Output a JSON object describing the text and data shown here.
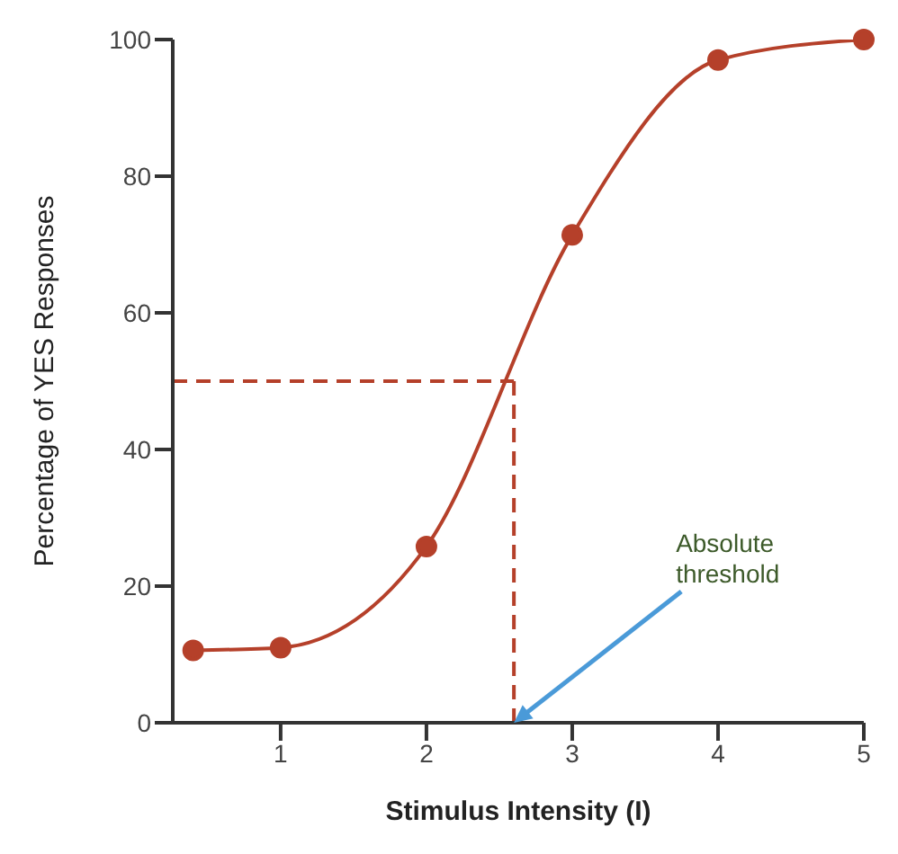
{
  "chart_data": {
    "type": "line",
    "xlabel": "Stimulus Intensity (I)",
    "ylabel": "Percentage of YES Responses",
    "x": [
      0.4,
      1,
      2,
      3,
      4,
      5
    ],
    "series": [
      {
        "color": "#b5402a",
        "values": [
          10.6,
          11,
          25.8,
          71.4,
          97,
          100
        ]
      }
    ],
    "xlim": [
      0.26,
      5
    ],
    "xticks": [
      1,
      2,
      3,
      4,
      5
    ],
    "ylim": [
      0,
      100
    ],
    "yticks": [
      0,
      20,
      40,
      60,
      80,
      100
    ],
    "marker": "circle",
    "line_style": "solid",
    "ref_lines": [
      {
        "axis": "y",
        "value": 50,
        "color": "#b5402a",
        "line_style": "dashed"
      },
      {
        "axis": "x",
        "value": 2.6,
        "color": "#b5402a",
        "line_style": "dashed"
      }
    ],
    "annotations": [
      {
        "text": "Absolute threshold",
        "x": 2.6,
        "y": 0
      }
    ]
  }
}
